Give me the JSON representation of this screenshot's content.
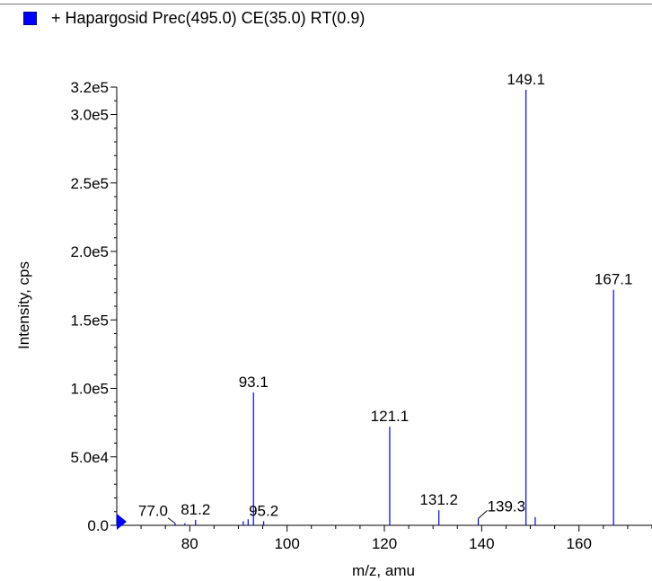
{
  "legend": {
    "label": "+ Hapargosid Prec(495.0) CE(35.0) RT(0.9)",
    "color": "#0000ff"
  },
  "chart_data": {
    "type": "bar",
    "title": "",
    "xlabel": "m/z, amu",
    "ylabel": "Intensity, cps",
    "xlim": [
      65,
      175
    ],
    "ylim": [
      0,
      320000
    ],
    "grid": false,
    "legend_position": "top-left",
    "x_ticks": [
      80,
      100,
      120,
      140,
      160
    ],
    "x_tick_labels": [
      "80",
      "100",
      "120",
      "140",
      "160"
    ],
    "y_ticks": [
      0,
      50000,
      100000,
      150000,
      200000,
      250000,
      300000,
      320000
    ],
    "y_tick_labels": [
      "0.0",
      "5.0e4",
      "1.0e5",
      "1.5e5",
      "2.0e5",
      "2.5e5",
      "3.0e5",
      "3.2e5"
    ],
    "series": [
      {
        "color": "#0000ff",
        "x": [
          77.0,
          79.0,
          81.2,
          91.0,
          92.0,
          93.1,
          95.2,
          121.1,
          131.2,
          139.3,
          149.1,
          151.0,
          167.1
        ],
        "y": [
          1500,
          1500,
          4000,
          3000,
          4500,
          97000,
          3000,
          72000,
          11000,
          5000,
          318000,
          6000,
          172000
        ]
      }
    ],
    "peak_labels": [
      {
        "x": 77.0,
        "text": "77.0",
        "leader": true
      },
      {
        "x": 81.2,
        "text": "81.2"
      },
      {
        "x": 93.1,
        "text": "93.1"
      },
      {
        "x": 95.2,
        "text": "95.2"
      },
      {
        "x": 121.1,
        "text": "121.1"
      },
      {
        "x": 131.2,
        "text": "131.2"
      },
      {
        "x": 139.3,
        "text": "139.3",
        "leader": true
      },
      {
        "x": 149.1,
        "text": "149.1"
      },
      {
        "x": 167.1,
        "text": "167.1"
      }
    ],
    "marker": {
      "color": "#0000ff"
    }
  }
}
